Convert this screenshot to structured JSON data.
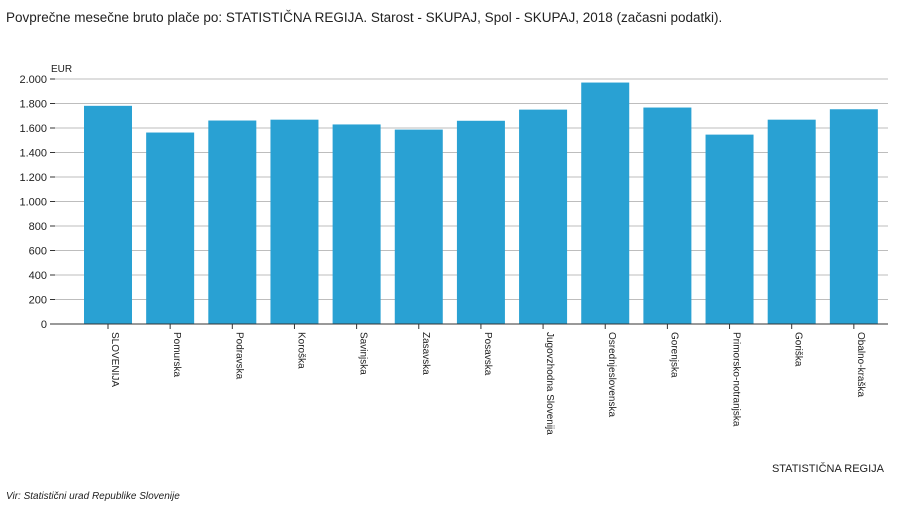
{
  "header": {
    "title": "Povprečne mesečne bruto plače po: STATISTIČNA REGIJA. Starost - SKUPAJ, Spol - SKUPAJ, 2018 (začasni podatki)."
  },
  "footer": {
    "source": "Vir: Statistični urad Republike Slovenije"
  },
  "colors": {
    "bar": "#29a1d3",
    "grid": "#bdbdbd",
    "axis": "#333333"
  },
  "chart_data": {
    "type": "bar",
    "title": "Povprečne mesečne bruto plače po: STATISTIČNA REGIJA. Starost - SKUPAJ, Spol - SKUPAJ, 2018 (začasni podatki).",
    "xlabel": "STATISTIČNA REGIJA",
    "ylabel": "EUR",
    "ylim": [
      0,
      2000
    ],
    "yticks": [
      0,
      200,
      400,
      600,
      800,
      1000,
      1200,
      1400,
      1600,
      1800,
      2000
    ],
    "ytick_labels": [
      "0",
      "200",
      "400",
      "600",
      "800",
      "1.000",
      "1.200",
      "1.400",
      "1.600",
      "1.800",
      "2.000"
    ],
    "grid": true,
    "categories": [
      "SLOVENIJA",
      "Pomurska",
      "Podravska",
      "Koroška",
      "Savinjska",
      "Zasavska",
      "Posavska",
      "Jugovzhodna Slovenija",
      "Osrednjeslovenska",
      "Gorenjska",
      "Primorsko-notranjska",
      "Goriška",
      "Obalno-kraška"
    ],
    "values": [
      1781,
      1563,
      1661,
      1668,
      1629,
      1587,
      1659,
      1750,
      1971,
      1767,
      1546,
      1668,
      1753
    ]
  }
}
